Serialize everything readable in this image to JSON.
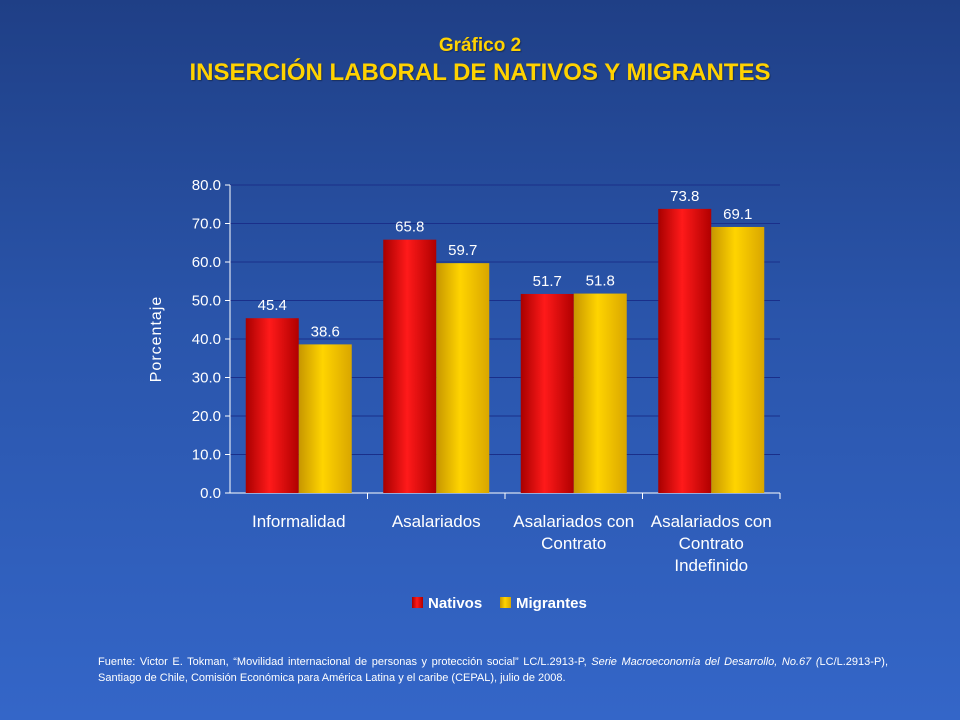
{
  "header": {
    "subtitle": "Gráfico 2",
    "title": "INSERCIÓN LABORAL DE NATIVOS Y MIGRANTES"
  },
  "colors": {
    "nativos": "#E00000",
    "migrantes": "#FFCC00",
    "title": "#FFD200"
  },
  "chart_data": {
    "type": "bar",
    "ylabel": "Porcentaje",
    "ylim": [
      0,
      80
    ],
    "yticks": [
      "0.0",
      "10.0",
      "20.0",
      "30.0",
      "40.0",
      "50.0",
      "60.0",
      "70.0",
      "80.0"
    ],
    "categories": [
      [
        "Informalidad"
      ],
      [
        "Asalariados"
      ],
      [
        "Asalariados con",
        "Contrato"
      ],
      [
        "Asalariados con",
        "Contrato",
        "Indefinido"
      ]
    ],
    "series": [
      {
        "name": "Nativos",
        "values": [
          45.4,
          65.8,
          51.7,
          73.8
        ],
        "labels": [
          "45.4",
          "65.8",
          "51.7",
          "73.8"
        ]
      },
      {
        "name": "Migrantes",
        "values": [
          38.6,
          59.7,
          51.8,
          69.1
        ],
        "labels": [
          "38.6",
          "59.7",
          "51.8",
          "69.1"
        ]
      }
    ],
    "legend_position": "bottom",
    "grid": true
  },
  "source": {
    "p1": "Fuente: Victor E. Tokman, “Movilidad internacional de personas y protección social” LC/L.2913-P, ",
    "italic1": "Serie Macroeconomía del Desarrollo, No.67 (",
    "p2": "LC/L.2913-P),  Santiago de Chile, Comisión Económica para América Latina y el caribe (CEPAL), julio de 2008."
  }
}
